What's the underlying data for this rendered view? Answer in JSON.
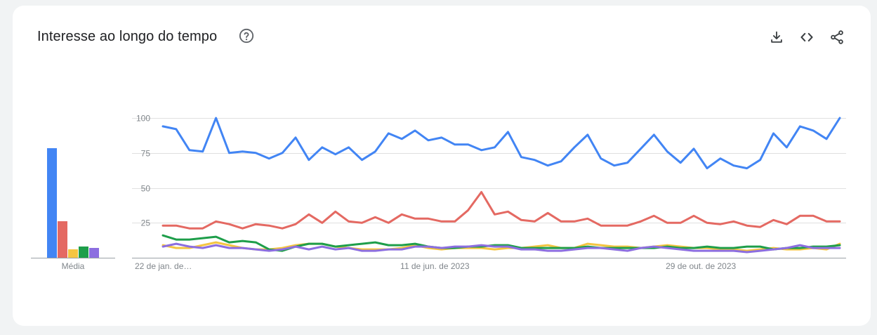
{
  "header": {
    "title": "Interesse ao longo do tempo"
  },
  "toolbar": {
    "icons": [
      "help-icon",
      "download-icon",
      "embed-icon",
      "share-icon"
    ]
  },
  "colors": {
    "background": "#f1f3f4",
    "card": "#ffffff",
    "blue": "#4285f4",
    "red": "#e46962",
    "yellow": "#f4c542",
    "green": "#1e9e4a",
    "purple": "#8c6ee0"
  },
  "chart_data": [
    {
      "type": "bar",
      "xlabel": "Média",
      "values": [
        78,
        26,
        6,
        8,
        7
      ],
      "colors": [
        "#4285f4",
        "#e46962",
        "#f4c542",
        "#1e9e4a",
        "#8c6ee0"
      ],
      "ylim": [
        0,
        100
      ]
    },
    {
      "type": "line",
      "ylim": [
        0,
        100
      ],
      "yticks": [
        25,
        50,
        75,
        100
      ],
      "grid": true,
      "x_tick_labels": [
        "22 de jan. de…",
        "11 de jun. de 2023",
        "29 de out. de 2023"
      ],
      "x_tick_indices": [
        0,
        20,
        40
      ],
      "series": [
        {
          "color": "#e46962",
          "values": [
            23,
            23,
            21,
            21,
            26,
            24,
            21,
            24,
            23,
            21,
            24,
            31,
            25,
            33,
            26,
            25,
            29,
            25,
            31,
            28,
            28,
            26,
            26,
            34,
            47,
            31,
            33,
            27,
            26,
            32,
            26,
            26,
            28,
            23,
            23,
            23,
            26,
            30,
            25,
            25,
            30,
            25,
            24,
            26,
            23,
            22,
            27,
            24,
            30,
            30,
            26,
            26
          ]
        },
        {
          "color": "#f4c542",
          "values": [
            9,
            7,
            7,
            9,
            11,
            9,
            7,
            6,
            6,
            7,
            9,
            10,
            10,
            8,
            7,
            6,
            6,
            6,
            7,
            9,
            7,
            6,
            7,
            7,
            7,
            6,
            7,
            7,
            8,
            9,
            7,
            7,
            10,
            9,
            8,
            8,
            7,
            8,
            9,
            8,
            7,
            7,
            6,
            6,
            5,
            6,
            7,
            6,
            6,
            7,
            6,
            10
          ]
        },
        {
          "color": "#1e9e4a",
          "values": [
            16,
            13,
            13,
            14,
            15,
            11,
            12,
            11,
            6,
            5,
            8,
            10,
            10,
            8,
            9,
            10,
            11,
            9,
            9,
            10,
            8,
            7,
            7,
            8,
            8,
            9,
            9,
            7,
            7,
            7,
            7,
            7,
            8,
            7,
            7,
            7,
            7,
            7,
            8,
            7,
            7,
            8,
            7,
            7,
            8,
            8,
            6,
            7,
            7,
            8,
            8,
            9
          ]
        },
        {
          "color": "#8c6ee0",
          "values": [
            8,
            10,
            8,
            7,
            9,
            7,
            7,
            6,
            5,
            6,
            8,
            6,
            8,
            6,
            7,
            5,
            5,
            6,
            6,
            8,
            8,
            7,
            8,
            8,
            9,
            8,
            8,
            6,
            6,
            5,
            5,
            6,
            7,
            7,
            6,
            5,
            7,
            8,
            7,
            6,
            5,
            5,
            5,
            5,
            4,
            5,
            6,
            7,
            9,
            7,
            7,
            7
          ]
        },
        {
          "color": "#4285f4",
          "values": [
            94,
            92,
            77,
            76,
            100,
            75,
            76,
            75,
            71,
            75,
            86,
            70,
            79,
            74,
            79,
            70,
            76,
            89,
            85,
            91,
            84,
            86,
            81,
            81,
            77,
            79,
            90,
            72,
            70,
            66,
            69,
            79,
            88,
            71,
            66,
            68,
            78,
            88,
            76,
            68,
            78,
            64,
            71,
            66,
            64,
            70,
            89,
            79,
            94,
            91,
            85,
            100
          ]
        }
      ]
    }
  ]
}
